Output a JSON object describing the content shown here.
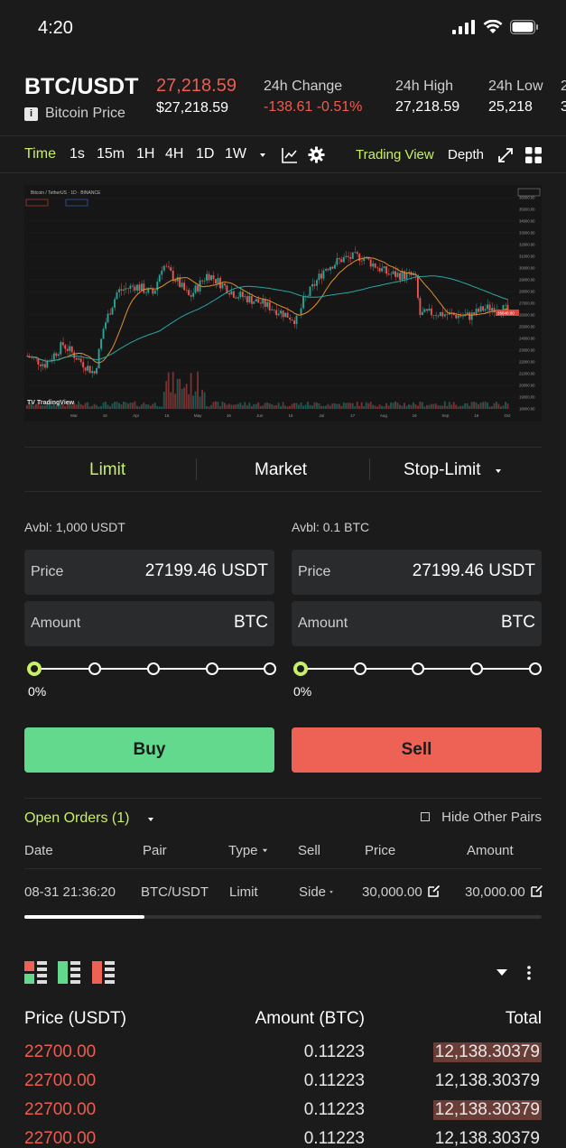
{
  "status_bar": {
    "time": "4:20"
  },
  "ticker": {
    "pair": "BTC/USDT",
    "subtitle": "Bitcoin Price",
    "last_price": "27,218.59",
    "usd_price": "$27,218.59",
    "stats": [
      {
        "label": "24h Change",
        "value": "-138.61 -0.51%",
        "color": "#ee5c4f"
      },
      {
        "label": "24h High",
        "value": "27,218.59",
        "color": "#ffffff"
      },
      {
        "label": "24h Low",
        "value": "25,218",
        "color": "#ffffff"
      },
      {
        "label": "2",
        "value": "3",
        "color": "#ffffff"
      }
    ]
  },
  "chart_toolbar": {
    "time_label": "Time",
    "intervals": [
      "1s",
      "15m",
      "1H",
      "4H",
      "1D",
      "1W"
    ],
    "trading_view": "Trading View",
    "depth": "Depth"
  },
  "chart": {
    "symbol_line": "Bitcoin / TetherUS · 1D · BINANCE",
    "logo_text": "TradingView",
    "y_ticks": [
      "36000.00",
      "35000.00",
      "34000.00",
      "33000.00",
      "32000.00",
      "31000.00",
      "30000.00",
      "29000.00",
      "28000.00",
      "27000.00",
      "26000.00",
      "25000.00",
      "24000.00",
      "23000.00",
      "22000.00",
      "21000.00",
      "20000.00",
      "19000.00",
      "18000.00"
    ],
    "x_ticks": [
      "Mar",
      "16",
      "Apr",
      "16",
      "May",
      "16",
      "Jun",
      "16",
      "Jul",
      "17",
      "Aug",
      "16",
      "Sep",
      "16",
      "Oct"
    ],
    "price_tag": "26640.00"
  },
  "chart_data": {
    "type": "line",
    "series": [],
    "ylim": [
      18000,
      36000
    ]
  },
  "order_tabs": [
    "Limit",
    "Market",
    "Stop-Limit"
  ],
  "buy_form": {
    "avbl": "Avbl: 1,000 USDT",
    "price_label": "Price",
    "price_value": "27199.46 USDT",
    "amount_label": "Amount",
    "amount_unit": "BTC",
    "percent": "0%",
    "button": "Buy",
    "button_color": "#63d98e"
  },
  "sell_form": {
    "avbl": "Avbl: 0.1 BTC",
    "price_label": "Price",
    "price_value": "27199.46 USDT",
    "amount_label": "Amount",
    "amount_unit": "BTC",
    "percent": "0%",
    "button": "Sell",
    "button_color": "#ee6256"
  },
  "open_orders": {
    "title": "Open Orders (1)",
    "hide_pairs": "Hide Other Pairs",
    "columns": [
      "Date",
      "Pair",
      "Type",
      "Sell",
      "Price",
      "Amount"
    ],
    "rows": [
      {
        "date": "08-31 21:36:20",
        "pair": "BTC/USDT",
        "type": "Limit",
        "side": "Side",
        "price": "30,000.00",
        "amount": "30,000.00"
      }
    ]
  },
  "order_book": {
    "headers": [
      "Price (USDT)",
      "Amount (BTC)",
      "Total"
    ],
    "rows": [
      {
        "price": "22700.00",
        "amount": "0.11223",
        "total": "12,138.30379",
        "highlight": true
      },
      {
        "price": "22700.00",
        "amount": "0.11223",
        "total": "12,138.30379",
        "highlight": false
      },
      {
        "price": "22700.00",
        "amount": "0.11223",
        "total": "12,138.30379",
        "highlight": true
      },
      {
        "price": "22700.00",
        "amount": "0.11223",
        "total": "12,138.30379",
        "highlight": false
      }
    ]
  }
}
